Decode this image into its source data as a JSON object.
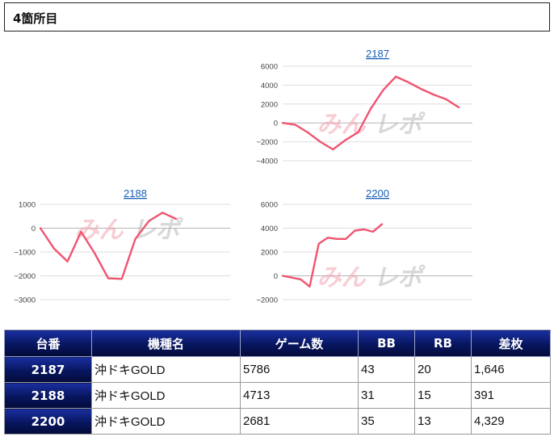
{
  "section": {
    "title": "4箇所目"
  },
  "watermark": {
    "part1": "みん",
    "part2": "レポ"
  },
  "colors": {
    "series": "#f05470",
    "link": "#1a5fb4",
    "header_bg": "#07155e"
  },
  "chart_data": [
    {
      "type": "line",
      "title": "2187",
      "ylim": [
        -4000,
        6000
      ],
      "yticks": [
        6000,
        4000,
        2000,
        0,
        -2000,
        -4000
      ],
      "yticklabels": [
        "6000",
        "4000",
        "2000",
        "0",
        "−2000",
        "−4000"
      ],
      "y": [
        0,
        -200,
        -1000,
        -2000,
        -2800,
        -1800,
        -1000,
        1500,
        3500,
        4900,
        4300,
        3600,
        3000,
        2500,
        1646
      ]
    },
    {
      "type": "line",
      "title": "2188",
      "ylim": [
        -3000,
        1000
      ],
      "yticks": [
        1000,
        0,
        -1000,
        -2000,
        -3000
      ],
      "yticklabels": [
        "1000",
        "0",
        "−1000",
        "−2000",
        "−3000"
      ],
      "y": [
        0,
        -850,
        -1400,
        -150,
        -1050,
        -2100,
        -2130,
        -450,
        300,
        650,
        391
      ]
    },
    {
      "type": "line",
      "title": "2200",
      "ylim": [
        -2000,
        6000
      ],
      "yticks": [
        6000,
        4000,
        2000,
        0,
        -2000
      ],
      "yticklabels": [
        "6000",
        "4000",
        "2000",
        "0",
        "−2000"
      ],
      "y": [
        0,
        -150,
        -300,
        -900,
        2700,
        3200,
        3100,
        3100,
        3800,
        3900,
        3700,
        4329
      ]
    }
  ],
  "table": {
    "headers": [
      "台番",
      "機種名",
      "ゲーム数",
      "BB",
      "RB",
      "差枚"
    ],
    "rows": [
      {
        "no": "2187",
        "model": "沖ドキGOLD",
        "games": "5786",
        "bb": "43",
        "rb": "20",
        "diff": "1,646"
      },
      {
        "no": "2188",
        "model": "沖ドキGOLD",
        "games": "4713",
        "bb": "31",
        "rb": "15",
        "diff": "391"
      },
      {
        "no": "2200",
        "model": "沖ドキGOLD",
        "games": "2681",
        "bb": "35",
        "rb": "13",
        "diff": "4,329"
      }
    ]
  }
}
